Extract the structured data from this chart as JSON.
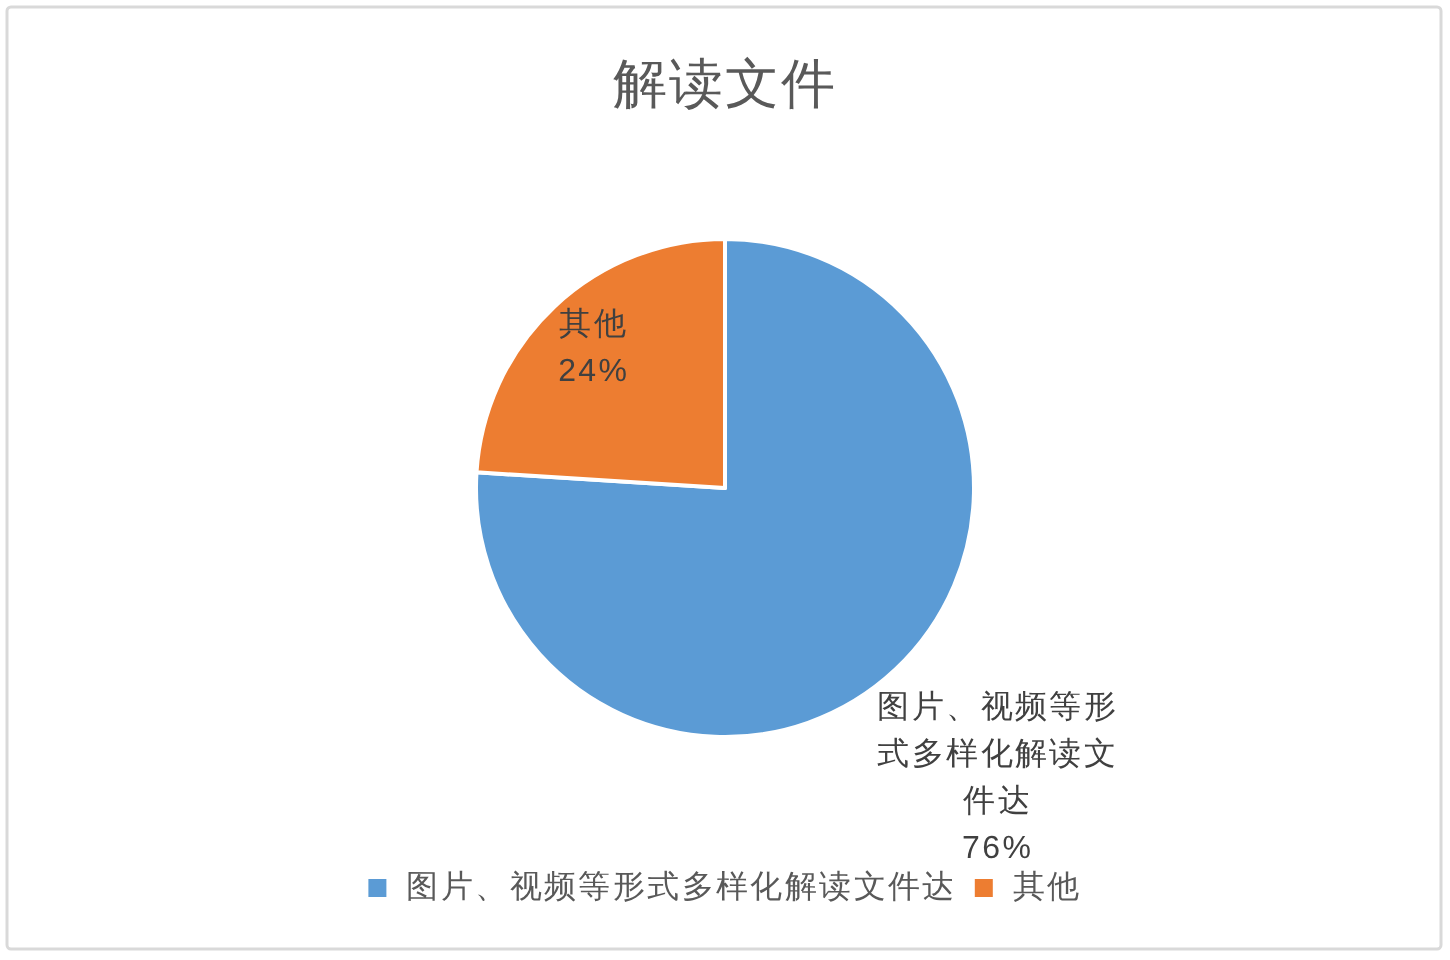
{
  "chart_data": {
    "type": "pie",
    "title": "解读文件",
    "categories": [
      "图片、视频等形式多样化解读文件达",
      "其他"
    ],
    "values": [
      76,
      24
    ],
    "colors": [
      "#5b9bd5",
      "#ed7d31"
    ],
    "value_labels": [
      "76%",
      "24%"
    ],
    "legend": "bottom"
  }
}
